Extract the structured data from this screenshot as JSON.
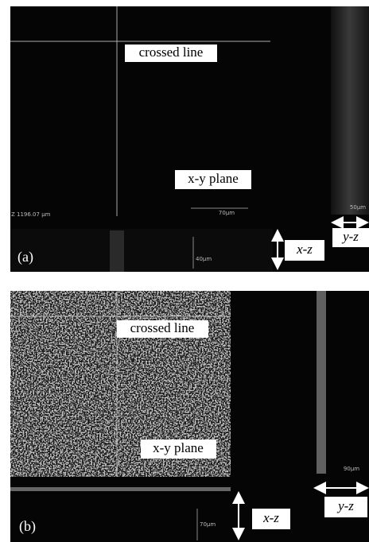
{
  "panels": [
    {
      "label": "(a)",
      "crossed_line": "crossed line",
      "xy_plane": "x-y plane",
      "xz": "x-z",
      "yz": "y-z",
      "z_position": "Z 1196.07 µm",
      "scale_xy": "70µm",
      "scale_yz": "50µm",
      "scale_xz": "40µm"
    },
    {
      "label": "(b)",
      "crossed_line": "crossed line",
      "xy_plane": "x-y plane",
      "xz": "x-z",
      "yz": "y-z",
      "scale_yz": "90µm",
      "scale_xz": "70µm"
    }
  ]
}
